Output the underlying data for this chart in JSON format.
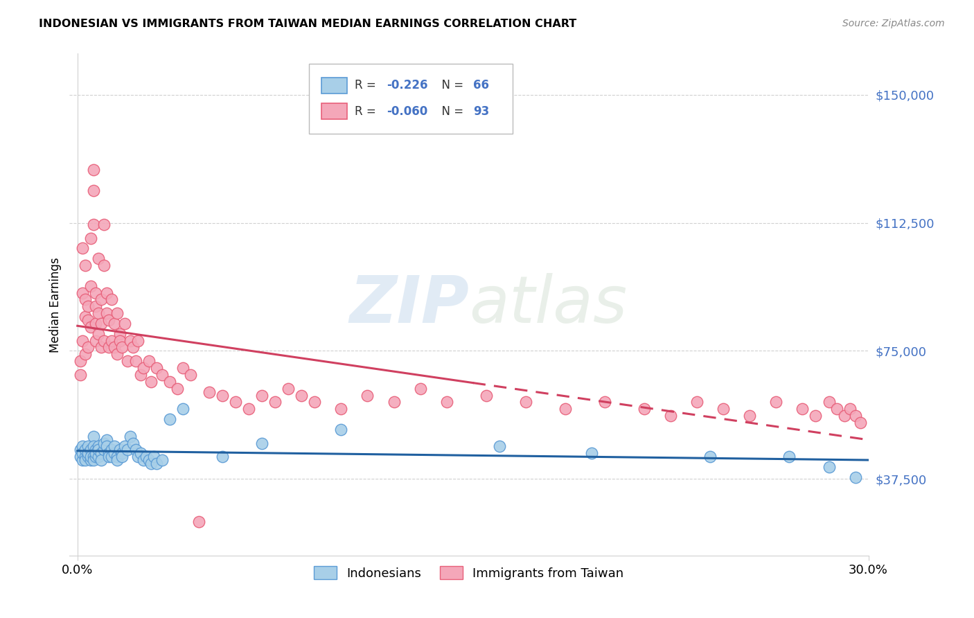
{
  "title": "INDONESIAN VS IMMIGRANTS FROM TAIWAN MEDIAN EARNINGS CORRELATION CHART",
  "source": "Source: ZipAtlas.com",
  "ylabel": "Median Earnings",
  "y_ticks": [
    37500,
    75000,
    112500,
    150000
  ],
  "y_tick_labels": [
    "$37,500",
    "$75,000",
    "$112,500",
    "$150,000"
  ],
  "xlim": [
    0.0,
    0.3
  ],
  "ylim": [
    15000,
    162000
  ],
  "blue_R": "-0.226",
  "blue_N": "66",
  "pink_R": "-0.060",
  "pink_N": "93",
  "blue_color": "#a8cfe8",
  "pink_color": "#f4a7b9",
  "blue_edge_color": "#5b9bd5",
  "pink_edge_color": "#e8607a",
  "blue_line_color": "#2060a0",
  "pink_line_color": "#d04060",
  "accent_color": "#4472c4",
  "watermark": "ZIPatlas",
  "legend_label_blue": "Indonesians",
  "legend_label_pink": "Immigrants from Taiwan",
  "blue_scatter_x": [
    0.001,
    0.001,
    0.002,
    0.002,
    0.002,
    0.003,
    0.003,
    0.003,
    0.004,
    0.004,
    0.004,
    0.005,
    0.005,
    0.005,
    0.006,
    0.006,
    0.006,
    0.006,
    0.007,
    0.007,
    0.007,
    0.008,
    0.008,
    0.008,
    0.009,
    0.009,
    0.01,
    0.01,
    0.011,
    0.011,
    0.012,
    0.012,
    0.013,
    0.013,
    0.014,
    0.014,
    0.015,
    0.015,
    0.016,
    0.017,
    0.017,
    0.018,
    0.019,
    0.02,
    0.021,
    0.022,
    0.023,
    0.024,
    0.025,
    0.026,
    0.027,
    0.028,
    0.029,
    0.03,
    0.032,
    0.035,
    0.04,
    0.055,
    0.07,
    0.1,
    0.16,
    0.195,
    0.24,
    0.27,
    0.285,
    0.295
  ],
  "blue_scatter_y": [
    46000,
    44000,
    47000,
    43000,
    45000,
    44000,
    46000,
    43000,
    47000,
    44000,
    45000,
    46000,
    43000,
    44000,
    50000,
    47000,
    44000,
    43000,
    46000,
    44000,
    45000,
    47000,
    44000,
    46000,
    45000,
    43000,
    46000,
    48000,
    49000,
    47000,
    45000,
    44000,
    46000,
    44000,
    45000,
    47000,
    44000,
    43000,
    46000,
    45000,
    44000,
    47000,
    46000,
    50000,
    48000,
    46000,
    44000,
    45000,
    43000,
    44000,
    43000,
    42000,
    44000,
    42000,
    43000,
    55000,
    58000,
    44000,
    48000,
    52000,
    47000,
    45000,
    44000,
    44000,
    41000,
    38000
  ],
  "pink_scatter_x": [
    0.001,
    0.001,
    0.002,
    0.002,
    0.002,
    0.003,
    0.003,
    0.003,
    0.003,
    0.004,
    0.004,
    0.004,
    0.005,
    0.005,
    0.005,
    0.006,
    0.006,
    0.006,
    0.007,
    0.007,
    0.007,
    0.007,
    0.008,
    0.008,
    0.008,
    0.009,
    0.009,
    0.009,
    0.01,
    0.01,
    0.01,
    0.011,
    0.011,
    0.012,
    0.012,
    0.013,
    0.013,
    0.014,
    0.014,
    0.015,
    0.015,
    0.016,
    0.016,
    0.017,
    0.018,
    0.019,
    0.02,
    0.021,
    0.022,
    0.023,
    0.024,
    0.025,
    0.027,
    0.028,
    0.03,
    0.032,
    0.035,
    0.038,
    0.04,
    0.043,
    0.046,
    0.05,
    0.055,
    0.06,
    0.065,
    0.07,
    0.075,
    0.08,
    0.085,
    0.09,
    0.1,
    0.11,
    0.12,
    0.13,
    0.14,
    0.155,
    0.17,
    0.185,
    0.2,
    0.215,
    0.225,
    0.235,
    0.245,
    0.255,
    0.265,
    0.275,
    0.28,
    0.285,
    0.288,
    0.291,
    0.293,
    0.295,
    0.297
  ],
  "pink_scatter_y": [
    72000,
    68000,
    78000,
    92000,
    105000,
    85000,
    74000,
    90000,
    100000,
    84000,
    88000,
    76000,
    108000,
    94000,
    82000,
    122000,
    128000,
    112000,
    88000,
    83000,
    92000,
    78000,
    102000,
    86000,
    80000,
    76000,
    83000,
    90000,
    100000,
    112000,
    78000,
    86000,
    92000,
    84000,
    76000,
    90000,
    78000,
    83000,
    76000,
    86000,
    74000,
    80000,
    78000,
    76000,
    83000,
    72000,
    78000,
    76000,
    72000,
    78000,
    68000,
    70000,
    72000,
    66000,
    70000,
    68000,
    66000,
    64000,
    70000,
    68000,
    25000,
    63000,
    62000,
    60000,
    58000,
    62000,
    60000,
    64000,
    62000,
    60000,
    58000,
    62000,
    60000,
    64000,
    60000,
    62000,
    60000,
    58000,
    60000,
    58000,
    56000,
    60000,
    58000,
    56000,
    60000,
    58000,
    56000,
    60000,
    58000,
    56000,
    58000,
    56000,
    54000
  ]
}
